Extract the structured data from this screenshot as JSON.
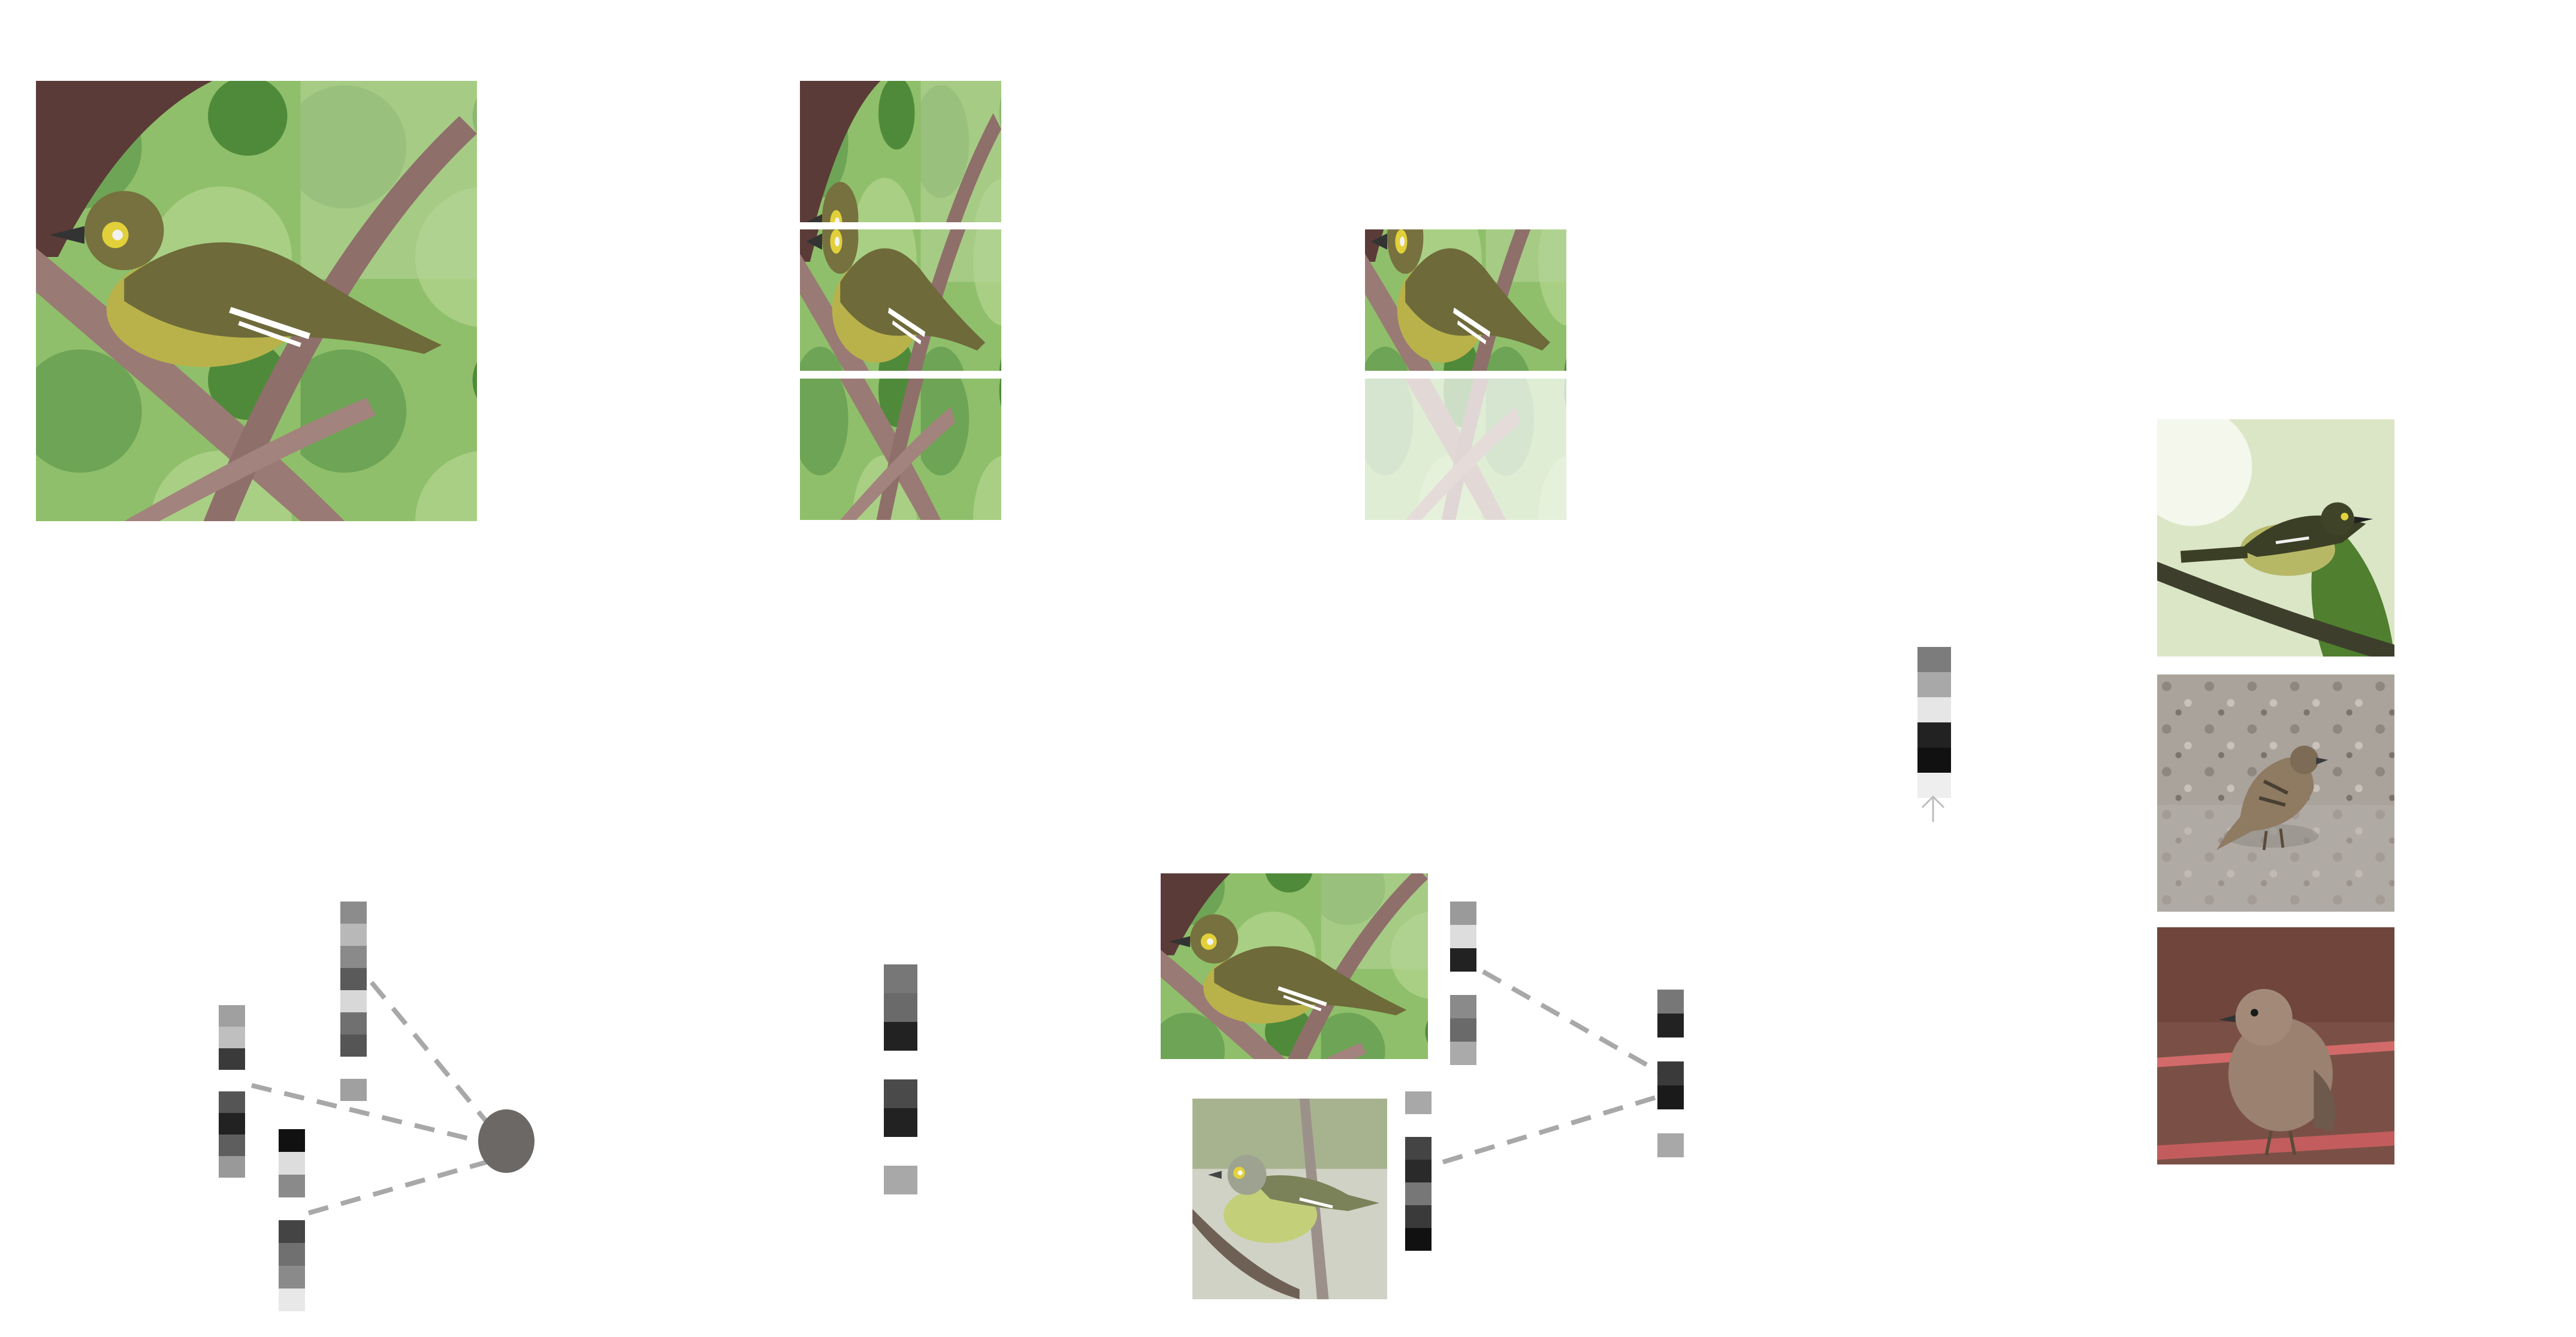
{
  "figure": {
    "description_visible_text": "",
    "palette": {
      "leaf_light": "#8fbf6a",
      "leaf_dark": "#3f7a2e",
      "branch": "#9a7a74",
      "bird_body": "#6e6a3a",
      "bird_belly": "#b9b24a",
      "ground": "#a59f98",
      "brown_bg": "#7a5046",
      "sparrow": "#8f7a62",
      "dash": "#a8a8a8",
      "node": "#6b6866"
    }
  },
  "panels": {
    "input_image": {
      "label": ""
    },
    "crops": {
      "count": 3
    },
    "masked_crops": {
      "count": 2,
      "faded_index": 1
    },
    "retrieval_results": {
      "count": 3,
      "subjects": [
        "vireo",
        "sparrow-on-ground",
        "wren-on-branch"
      ]
    }
  },
  "feature_vectors": {
    "aggregation": [
      [
        "#8c8c8c",
        "#b8b8b8",
        "#8a8a8a",
        "#5a5a5a",
        "#d8d8d8",
        "#707070",
        "#555555",
        "#ffffff",
        "#a0a0a0"
      ],
      [
        "#a0a0a0",
        "#bfbfbf",
        "#3a3a3a",
        "#ffffff",
        "#555555",
        "#222222",
        "#5e5e5e",
        "#999999"
      ],
      [
        "#111111",
        "#dddddd",
        "#8a8a8a",
        "#ffffff",
        "#444444",
        "#707070",
        "#8a8a8a",
        "#e8e8e8"
      ]
    ],
    "center": [
      "#777777",
      "#6a6a6a",
      "#222222",
      "#ffffff",
      "#4a4a4a",
      "#222222",
      "#ffffff",
      "#a8a8a8"
    ],
    "pair_a": [
      "#9a9a9a",
      "#dddddd",
      "#222222",
      "#ffffff",
      "#8a8a8a",
      "#6a6a6a",
      "#aaaaaa"
    ],
    "pair_b": [
      "#a8a8a8",
      "#ffffff",
      "#444444",
      "#2a2a2a",
      "#777777",
      "#3a3a3a",
      "#111111"
    ],
    "pair_target": [
      "#777777",
      "#222222",
      "#ffffff",
      "#3a3a3a",
      "#1a1a1a",
      "#ffffff",
      "#a8a8a8"
    ],
    "query": [
      "#7c7c7c",
      "#a8a8a8",
      "#e6e6e6",
      "#222222",
      "#111111",
      "#eeeeee"
    ]
  },
  "aggregation_node": {
    "color": "#6b6866"
  }
}
